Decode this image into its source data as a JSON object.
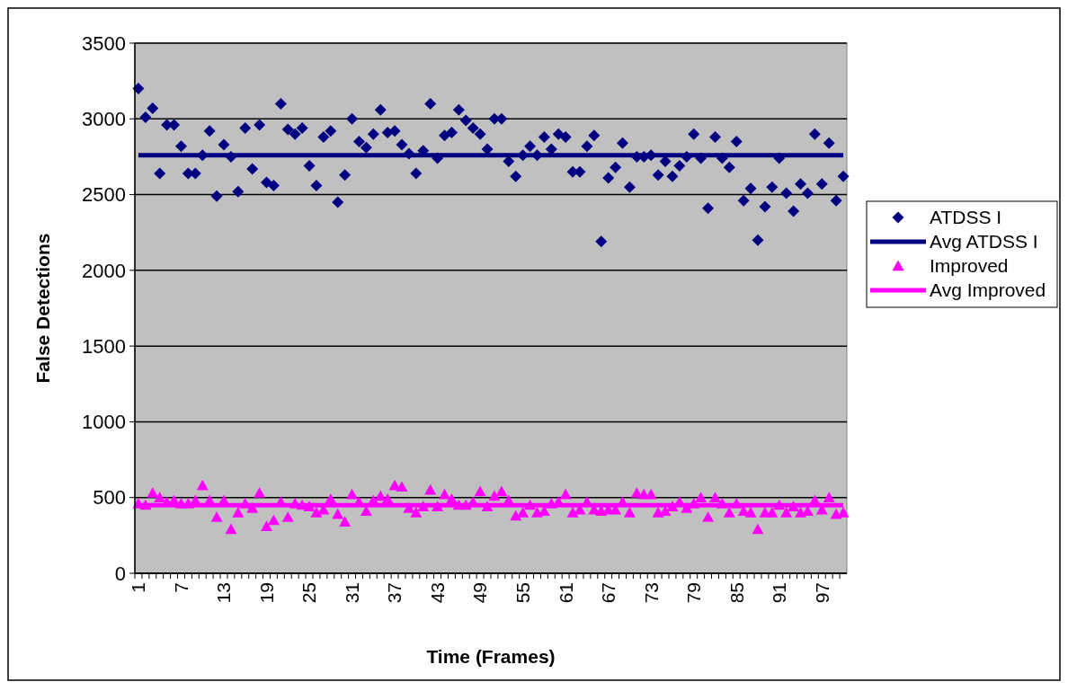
{
  "chart_data": {
    "type": "scatter",
    "xlabel": "Time (Frames)",
    "ylabel": "False Detections",
    "categories": [
      "1",
      null,
      null,
      null,
      null,
      null,
      "7",
      null,
      null,
      null,
      null,
      null,
      "13",
      null,
      null,
      null,
      null,
      null,
      "19",
      null,
      null,
      null,
      null,
      null,
      "25",
      null,
      null,
      null,
      null,
      null,
      "31",
      null,
      null,
      null,
      null,
      null,
      "37",
      null,
      null,
      null,
      null,
      null,
      "43",
      null,
      null,
      null,
      null,
      null,
      "49",
      null,
      null,
      null,
      null,
      null,
      "55",
      null,
      null,
      null,
      null,
      null,
      "61",
      null,
      null,
      null,
      null,
      null,
      "67",
      null,
      null,
      null,
      null,
      null,
      "73",
      null,
      null,
      null,
      null,
      null,
      "79",
      null,
      null,
      null,
      null,
      null,
      "85",
      null,
      null,
      null,
      null,
      null,
      "91",
      null,
      null,
      null,
      null,
      null,
      "97",
      null,
      null,
      null
    ],
    "ylim": [
      0,
      3500
    ],
    "yticks": [
      0,
      500,
      1000,
      1500,
      2000,
      2500,
      3000,
      3500
    ],
    "grid": "y",
    "legend": "right",
    "series": [
      {
        "name": "ATDSS I",
        "marker": "diamond",
        "color": "#000080",
        "values": [
          3200,
          3010,
          3070,
          2640,
          2960,
          2960,
          2820,
          2640,
          2640,
          2760,
          2920,
          2490,
          2830,
          2750,
          2520,
          2940,
          2670,
          2960,
          2580,
          2560,
          3100,
          2930,
          2900,
          2940,
          2690,
          2560,
          2880,
          2920,
          2450,
          2630,
          3000,
          2850,
          2810,
          2900,
          3060,
          2910,
          2920,
          2830,
          2770,
          2640,
          2790,
          3100,
          2740,
          2890,
          2910,
          3060,
          2990,
          2940,
          2900,
          2800,
          3000,
          3000,
          2720,
          2620,
          2760,
          2820,
          2760,
          2880,
          2800,
          2900,
          2880,
          2650,
          2650,
          2820,
          2890,
          2190,
          2610,
          2680,
          2840,
          2550,
          2750,
          2750,
          2760,
          2630,
          2720,
          2620,
          2690,
          2750,
          2900,
          2740,
          2410,
          2880,
          2740,
          2680,
          2850,
          2460,
          2540,
          2200,
          2420,
          2550,
          2740,
          2510,
          2390,
          2570,
          2510,
          2900,
          2570,
          2840,
          2460,
          2620
        ]
      },
      {
        "name": "Avg ATDSS I",
        "type": "line",
        "marker": "none",
        "color": "#000080",
        "values": [
          2760,
          2760,
          2760,
          2760,
          2760,
          2760,
          2760,
          2760,
          2760,
          2760,
          2760,
          2760,
          2760,
          2760,
          2760,
          2760,
          2760,
          2760,
          2760,
          2760,
          2760,
          2760,
          2760,
          2760,
          2760,
          2760,
          2760,
          2760,
          2760,
          2760,
          2760,
          2760,
          2760,
          2760,
          2760,
          2760,
          2760,
          2760,
          2760,
          2760,
          2760,
          2760,
          2760,
          2760,
          2760,
          2760,
          2760,
          2760,
          2760,
          2760,
          2760,
          2760,
          2760,
          2760,
          2760,
          2760,
          2760,
          2760,
          2760,
          2760,
          2760,
          2760,
          2760,
          2760,
          2760,
          2760,
          2760,
          2760,
          2760,
          2760,
          2760,
          2760,
          2760,
          2760,
          2760,
          2760,
          2760,
          2760,
          2760,
          2760,
          2760,
          2760,
          2760,
          2760,
          2760,
          2760,
          2760,
          2760,
          2760,
          2760,
          2760,
          2760,
          2760,
          2760,
          2760,
          2760,
          2760,
          2760,
          2760,
          2760
        ]
      },
      {
        "name": "Improved",
        "marker": "triangle",
        "color": "#ff00ff",
        "values": [
          460,
          450,
          530,
          500,
          470,
          480,
          460,
          460,
          480,
          580,
          480,
          370,
          480,
          290,
          400,
          460,
          430,
          530,
          310,
          350,
          470,
          370,
          460,
          450,
          440,
          400,
          420,
          490,
          390,
          340,
          520,
          470,
          410,
          480,
          510,
          490,
          580,
          570,
          430,
          400,
          440,
          550,
          440,
          520,
          490,
          450,
          450,
          470,
          540,
          440,
          510,
          540,
          480,
          380,
          400,
          450,
          400,
          410,
          460,
          470,
          520,
          400,
          420,
          470,
          420,
          410,
          420,
          420,
          470,
          400,
          530,
          520,
          520,
          400,
          410,
          440,
          470,
          430,
          460,
          500,
          370,
          500,
          460,
          400,
          460,
          410,
          400,
          290,
          400,
          400,
          450,
          400,
          440,
          400,
          410,
          480,
          420,
          500,
          390,
          400
        ]
      },
      {
        "name": "Avg Improved",
        "type": "line",
        "marker": "none",
        "color": "#ff00ff",
        "values": [
          450,
          450,
          450,
          450,
          450,
          450,
          450,
          450,
          450,
          450,
          450,
          450,
          450,
          450,
          450,
          450,
          450,
          450,
          450,
          450,
          450,
          450,
          450,
          450,
          450,
          450,
          450,
          450,
          450,
          450,
          450,
          450,
          450,
          450,
          450,
          450,
          450,
          450,
          450,
          450,
          450,
          450,
          450,
          450,
          450,
          450,
          450,
          450,
          450,
          450,
          450,
          450,
          450,
          450,
          450,
          450,
          450,
          450,
          450,
          450,
          450,
          450,
          450,
          450,
          450,
          450,
          450,
          450,
          450,
          450,
          450,
          450,
          450,
          450,
          450,
          450,
          450,
          450,
          450,
          450,
          450,
          450,
          450,
          450,
          450,
          450,
          450,
          450,
          450,
          450,
          450,
          450,
          450,
          450,
          450,
          450,
          450,
          450,
          450,
          450
        ]
      }
    ]
  }
}
